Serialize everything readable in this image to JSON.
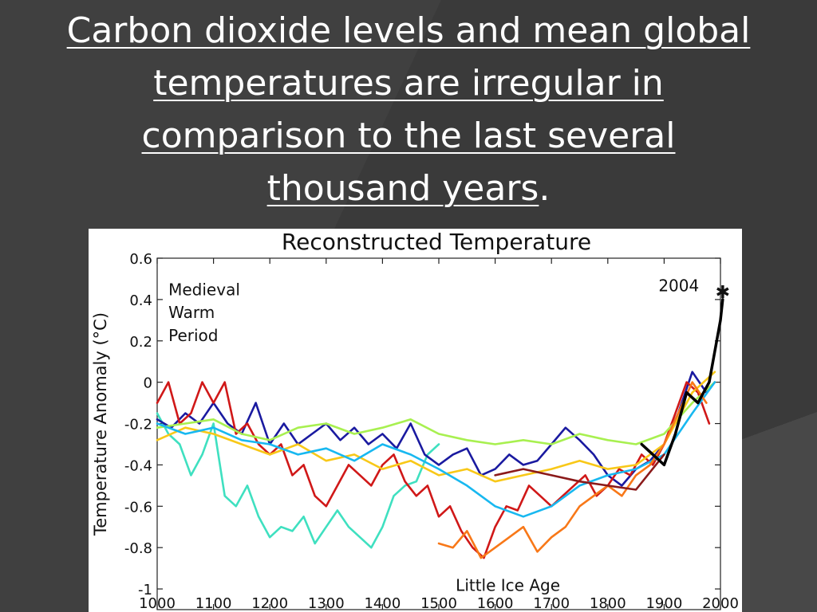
{
  "slide": {
    "title_line1": "Carbon dioxide levels and mean global",
    "title_line2": "temperatures are irregular in",
    "title_line3": "comparison to the last several",
    "title_line4": "thousand years",
    "title_end": "."
  },
  "chart_data": {
    "type": "line",
    "title": "Reconstructed Temperature",
    "xlabel": "",
    "ylabel": "Temperature Anomaly (°C)",
    "xlim": [
      1000,
      2000
    ],
    "ylim": [
      -1.1,
      0.6
    ],
    "xticks": [
      1000,
      1100,
      1200,
      1300,
      1400,
      1500,
      1600,
      1700,
      1800,
      1900,
      2000
    ],
    "yticks": [
      0.6,
      0.4,
      0.2,
      0,
      -0.2,
      -0.4,
      -0.6,
      -0.8,
      -1
    ],
    "annotations": [
      {
        "name": "mwp-line1",
        "text": "Medieval",
        "x": 1020,
        "y": 0.42
      },
      {
        "name": "mwp-line2",
        "text": "Warm",
        "x": 1020,
        "y": 0.31
      },
      {
        "name": "mwp-line3",
        "text": "Period",
        "x": 1020,
        "y": 0.2
      },
      {
        "name": "lia-label",
        "text": "Little Ice Age",
        "x": 1530,
        "y": -1.01
      },
      {
        "name": "year-2004-label",
        "text": "2004",
        "x": 1890,
        "y": 0.44
      }
    ],
    "marker": {
      "x": 2004,
      "y": 0.43,
      "symbol": "✱"
    },
    "series": [
      {
        "name": "teal-reconstruction",
        "color": "#3fe0c0",
        "x": [
          1000,
          1020,
          1040,
          1060,
          1080,
          1100,
          1120,
          1140,
          1160,
          1180,
          1200,
          1220,
          1240,
          1260,
          1280,
          1300,
          1320,
          1340,
          1360,
          1380,
          1400,
          1420,
          1440,
          1460,
          1480,
          1500
        ],
        "values": [
          -0.15,
          -0.25,
          -0.3,
          -0.45,
          -0.35,
          -0.2,
          -0.55,
          -0.6,
          -0.5,
          -0.65,
          -0.75,
          -0.7,
          -0.72,
          -0.65,
          -0.78,
          -0.7,
          -0.62,
          -0.7,
          -0.75,
          -0.8,
          -0.7,
          -0.55,
          -0.5,
          -0.48,
          -0.35,
          -0.3
        ]
      },
      {
        "name": "navy-reconstruction",
        "color": "#1a1aa0",
        "x": [
          1000,
          1025,
          1050,
          1075,
          1100,
          1125,
          1150,
          1175,
          1200,
          1225,
          1250,
          1275,
          1300,
          1325,
          1350,
          1375,
          1400,
          1425,
          1450,
          1475,
          1500,
          1525,
          1550,
          1575,
          1600,
          1625,
          1650,
          1675,
          1700,
          1725,
          1750,
          1775,
          1800,
          1825,
          1850,
          1875,
          1900,
          1925,
          1950,
          1975,
          1990
        ],
        "values": [
          -0.18,
          -0.22,
          -0.15,
          -0.2,
          -0.1,
          -0.2,
          -0.25,
          -0.1,
          -0.3,
          -0.2,
          -0.3,
          -0.25,
          -0.2,
          -0.28,
          -0.22,
          -0.3,
          -0.25,
          -0.32,
          -0.2,
          -0.35,
          -0.4,
          -0.35,
          -0.32,
          -0.45,
          -0.42,
          -0.35,
          -0.4,
          -0.38,
          -0.3,
          -0.22,
          -0.28,
          -0.35,
          -0.45,
          -0.5,
          -0.42,
          -0.38,
          -0.3,
          -0.15,
          0.05,
          -0.05,
          0.0
        ]
      },
      {
        "name": "red-reconstruction",
        "color": "#d01818",
        "x": [
          1000,
          1020,
          1040,
          1060,
          1080,
          1100,
          1120,
          1140,
          1160,
          1180,
          1200,
          1220,
          1240,
          1260,
          1280,
          1300,
          1320,
          1340,
          1360,
          1380,
          1400,
          1420,
          1440,
          1460,
          1480,
          1500,
          1520,
          1540,
          1560,
          1580,
          1600,
          1620,
          1640,
          1660,
          1680,
          1700,
          1720,
          1740,
          1760,
          1780,
          1800,
          1820,
          1840,
          1860,
          1880,
          1900,
          1920,
          1940,
          1960,
          1980
        ],
        "values": [
          -0.1,
          0.0,
          -0.2,
          -0.15,
          0.0,
          -0.1,
          0.0,
          -0.25,
          -0.2,
          -0.3,
          -0.35,
          -0.3,
          -0.45,
          -0.4,
          -0.55,
          -0.6,
          -0.5,
          -0.4,
          -0.45,
          -0.5,
          -0.4,
          -0.35,
          -0.48,
          -0.55,
          -0.5,
          -0.65,
          -0.6,
          -0.72,
          -0.8,
          -0.85,
          -0.7,
          -0.6,
          -0.62,
          -0.5,
          -0.55,
          -0.6,
          -0.55,
          -0.5,
          -0.45,
          -0.55,
          -0.5,
          -0.42,
          -0.45,
          -0.35,
          -0.4,
          -0.3,
          -0.15,
          0.0,
          -0.05,
          -0.2
        ]
      },
      {
        "name": "lime-reconstruction",
        "color": "#a8f050",
        "x": [
          1000,
          1050,
          1100,
          1150,
          1200,
          1250,
          1300,
          1350,
          1400,
          1450,
          1500,
          1550,
          1600,
          1650,
          1700,
          1750,
          1800,
          1850,
          1900,
          1950,
          1990
        ],
        "values": [
          -0.22,
          -0.2,
          -0.18,
          -0.25,
          -0.28,
          -0.22,
          -0.2,
          -0.25,
          -0.22,
          -0.18,
          -0.25,
          -0.28,
          -0.3,
          -0.28,
          -0.3,
          -0.25,
          -0.28,
          -0.3,
          -0.25,
          -0.1,
          0.0
        ]
      },
      {
        "name": "yellow-reconstruction",
        "color": "#f8c818",
        "x": [
          1000,
          1050,
          1100,
          1150,
          1200,
          1250,
          1300,
          1350,
          1400,
          1450,
          1500,
          1550,
          1600,
          1650,
          1700,
          1750,
          1800,
          1850,
          1900,
          1950,
          1990
        ],
        "values": [
          -0.28,
          -0.22,
          -0.25,
          -0.3,
          -0.35,
          -0.3,
          -0.38,
          -0.35,
          -0.42,
          -0.38,
          -0.45,
          -0.42,
          -0.48,
          -0.45,
          -0.42,
          -0.38,
          -0.42,
          -0.4,
          -0.3,
          -0.05,
          0.05
        ]
      },
      {
        "name": "cyan-reconstruction",
        "color": "#18b8f0",
        "x": [
          1000,
          1050,
          1100,
          1150,
          1200,
          1250,
          1300,
          1350,
          1400,
          1450,
          1500,
          1550,
          1600,
          1650,
          1700,
          1750,
          1800,
          1850,
          1900,
          1950,
          1990
        ],
        "values": [
          -0.2,
          -0.25,
          -0.22,
          -0.28,
          -0.3,
          -0.35,
          -0.32,
          -0.38,
          -0.3,
          -0.35,
          -0.42,
          -0.5,
          -0.6,
          -0.65,
          -0.6,
          -0.5,
          -0.45,
          -0.42,
          -0.35,
          -0.15,
          0.0
        ]
      },
      {
        "name": "orange-reconstruction",
        "color": "#f87818",
        "x": [
          1500,
          1525,
          1550,
          1575,
          1600,
          1625,
          1650,
          1675,
          1700,
          1725,
          1750,
          1775,
          1800,
          1825,
          1850,
          1875,
          1900,
          1925,
          1950,
          1975
        ],
        "values": [
          -0.78,
          -0.8,
          -0.72,
          -0.85,
          -0.8,
          -0.75,
          -0.7,
          -0.82,
          -0.75,
          -0.7,
          -0.6,
          -0.55,
          -0.5,
          -0.55,
          -0.45,
          -0.4,
          -0.3,
          -0.15,
          0.0,
          -0.1
        ]
      },
      {
        "name": "darkred-reconstruction",
        "color": "#8b1a1a",
        "x": [
          1600,
          1650,
          1700,
          1750,
          1800,
          1850,
          1900
        ],
        "values": [
          -0.45,
          -0.42,
          -0.45,
          -0.48,
          -0.5,
          -0.52,
          -0.35
        ]
      },
      {
        "name": "instrumental-record",
        "color": "#000000",
        "x": [
          1860,
          1880,
          1900,
          1920,
          1940,
          1960,
          1980,
          2000,
          2004
        ],
        "values": [
          -0.3,
          -0.35,
          -0.4,
          -0.25,
          -0.05,
          -0.1,
          0.0,
          0.3,
          0.4
        ]
      }
    ]
  }
}
